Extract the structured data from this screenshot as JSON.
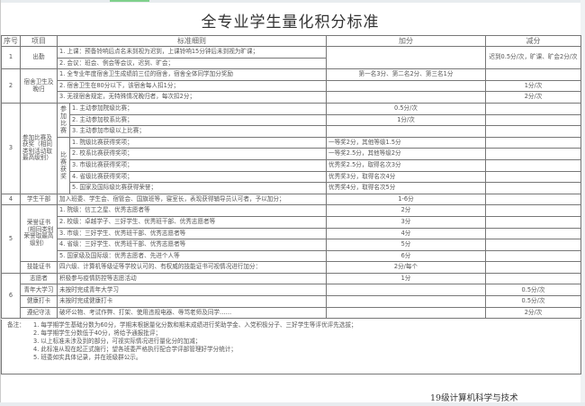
{
  "title": "全专业学生量化积分标准",
  "headers": {
    "no": "序号",
    "item": "项目",
    "rule": "标准细则",
    "add": "加分",
    "deduct": "减分"
  },
  "attendance": {
    "no": "1",
    "item": "出勤",
    "rules": [
      "1. 上课：预备铃响后点名未到视为迟到，上课铃响15分钟后未到视为旷课；",
      "2. 会议：班会、例会等会议，迟到、旷会；"
    ],
    "deduct": "迟到0.5分/次，旷课、旷会2分/次"
  },
  "dorm": {
    "no": "2",
    "item": "宿舍卫生及晚归",
    "rules": [
      "1. 全专业年度宿舍卫生成绩前三位的宿舍，宿舍全体同学加分奖励",
      "2. 宿舍卫生在80分以下，该宿舍每人扣1分；",
      "3. 无视宿舍规定，无特殊情况晚归者，每次扣2分；"
    ],
    "add": [
      "第一名3分、第二名2分、第三名1分",
      "",
      ""
    ],
    "deduct": [
      "",
      "1分/次",
      "2分/次"
    ]
  },
  "competition": {
    "no": "3",
    "item": "参加比赛及获奖（相同类别活动取最高级别）",
    "participate_label": "参加比赛",
    "participate": [
      "1. 主动参加院级比赛；",
      "2. 主动参加校系比赛；",
      "3. 主动参加市级以上比赛；"
    ],
    "participate_add": [
      "0.5分/次",
      "1分/次",
      ""
    ],
    "award_label": "比赛获奖",
    "awards": [
      "1. 院级比赛获得奖项；",
      "2. 校系比赛获得奖项；",
      "3. 市级比赛获得奖项；",
      "4. 省级比赛获得奖项；",
      "5. 国家及国际级比赛获得荣誉；"
    ],
    "awards_add": [
      "一等奖2分，其他等级1.5分",
      "一等奖2.5分，其他等级2分",
      "优秀奖2.5分，取得名次3分",
      "优秀奖3分，取得名次4分",
      "优秀奖4分，取得名次5分"
    ]
  },
  "cadre": {
    "no": "4",
    "item": "学生干部",
    "rule": "加入班委、学生会、宿管会、国旗班等，寝室长，表现获得辅导员认可者，予以加分；",
    "add": "1-6分"
  },
  "honor": {
    "no": "5",
    "item": "荣誉证书（相同类别荣誉取最高级别）",
    "rules": [
      "1. 院级：信工之星、优秀志愿者等",
      "2. 校级：卓越学子、三好学生、优秀班干部、优秀志愿者等",
      "3. 市级：三好学生、优秀班干部、优秀志愿者等",
      "4. 省级：三好学生、优秀班干部、优秀志愿者等",
      "5. 国家级及国际级：优秀志愿者、先进个人等"
    ],
    "add": [
      "2分",
      "3分",
      "4分",
      "5分",
      "6分"
    ],
    "skill_item": "技能证书",
    "skill_rule": "四六级、计算机等级证等学校认可的、有权威的技能证书可视情况进行加分：",
    "skill_add": "2分/每个"
  },
  "other": {
    "no": "6",
    "rows": [
      {
        "item": "志愿者",
        "rule": "积极参与疫情防控等志愿活动",
        "add": "1分",
        "deduct": ""
      },
      {
        "item": "青年大学习",
        "rule": "未按时完成青年大学习",
        "add": "",
        "deduct": "0.5分/次"
      },
      {
        "item": "健康打卡",
        "rule": "未按时完成健康打卡",
        "add": "",
        "deduct": "0.5分/次"
      },
      {
        "item": "遵纪守法",
        "rule": "破坏公物、考试作弊、打架、使用违规电器、辱骂老师及同学……",
        "add": "",
        "deduct": "2分/次"
      }
    ]
  },
  "remarks": {
    "label": "备注：",
    "lines": [
      "1. 每学期学生基础分数为60分，学期末根据量化分数和期末成绩进行奖助学金、入党积极分子、三好学生等评优评先选拔；",
      "2. 每学期学生分数低于40分，将给予通报批评；",
      "3. 以上标准未涉及到的部分，可视实际情况进行量化分的加减；",
      "4. 此标准从现在起正式施行；望各班委严格执行配合学评部管理好学分统计；",
      "5. 班委如实具体记录，并在班级群公示。"
    ]
  },
  "footer": "19级计算机科学与技术"
}
